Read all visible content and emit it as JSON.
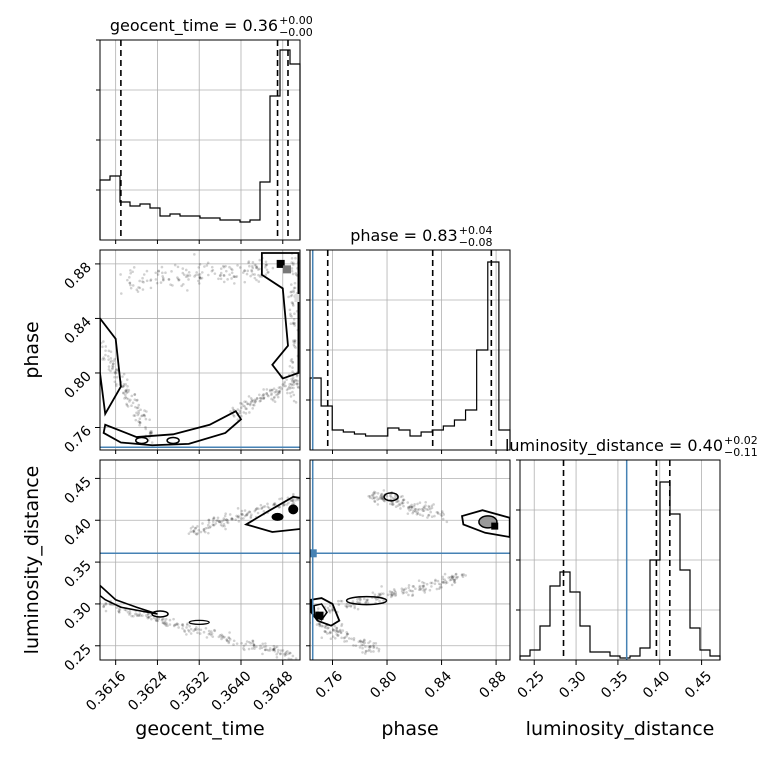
{
  "chart_data": {
    "type": "corner",
    "parameters": [
      "geocent_time",
      "phase",
      "luminosity_distance"
    ],
    "titles": [
      {
        "param": "geocent_time",
        "text": "geocent_time = 0.36",
        "sup": "+0.00",
        "sub": "−0.00"
      },
      {
        "param": "phase",
        "text": "phase = 0.83",
        "sup": "+0.04",
        "sub": "−0.08"
      },
      {
        "param": "luminosity_distance",
        "text": "luminosity_distance = 0.40",
        "sup": "+0.02",
        "sub": "−0.11"
      }
    ],
    "axis_labels": {
      "x": [
        "geocent_time",
        "phase",
        "luminosity_distance"
      ],
      "y": [
        "phase",
        "luminosity_distance"
      ]
    },
    "ticks": {
      "geocent_time": {
        "values": [
          0.3616,
          0.3624,
          0.3632,
          0.364,
          0.3648
        ],
        "labels": [
          "0.3616",
          "0.3624",
          "0.3632",
          "0.3640",
          "0.3648"
        ]
      },
      "phase": {
        "values": [
          0.76,
          0.8,
          0.84,
          0.88
        ],
        "labels": [
          "0.76",
          "0.80",
          "0.84",
          "0.88"
        ]
      },
      "luminosity_distance": {
        "values": [
          0.25,
          0.3,
          0.35,
          0.4,
          0.45
        ],
        "labels": [
          "0.25",
          "0.30",
          "0.35",
          "0.40",
          "0.45"
        ]
      }
    },
    "ranges": {
      "geocent_time": [
        0.3613,
        0.36513
      ],
      "phase": [
        0.7435,
        0.8902
      ],
      "luminosity_distance": [
        0.233,
        0.472
      ]
    },
    "injection": {
      "geocent_time": null,
      "phase": 0.7455,
      "luminosity_distance": 0.3605
    },
    "quantiles": {
      "geocent_time": [
        0.3617,
        0.3647,
        0.3649
      ],
      "phase": [
        0.7565,
        0.8335,
        0.8765
      ],
      "luminosity_distance": [
        0.285,
        0.396,
        0.412
      ]
    },
    "histograms": {
      "geocent_time": [
        0.3,
        0.32,
        0.19,
        0.17,
        0.18,
        0.16,
        0.12,
        0.13,
        0.12,
        0.12,
        0.11,
        0.11,
        0.1,
        0.1,
        0.09,
        0.1,
        0.29,
        0.72,
        0.95,
        0.88
      ],
      "phase": [
        0.36,
        0.22,
        0.1,
        0.09,
        0.08,
        0.07,
        0.07,
        0.11,
        0.1,
        0.07,
        0.09,
        0.1,
        0.12,
        0.15,
        0.2,
        0.5,
        0.94,
        0.1
      ],
      "luminosity_distance": [
        0.02,
        0.05,
        0.17,
        0.37,
        0.44,
        0.34,
        0.17,
        0.04,
        0.04,
        0.02,
        0.01,
        0.02,
        0.06,
        0.5,
        0.89,
        0.73,
        0.45,
        0.16,
        0.05,
        0.02
      ]
    },
    "grid": true,
    "hist_style": "step"
  }
}
